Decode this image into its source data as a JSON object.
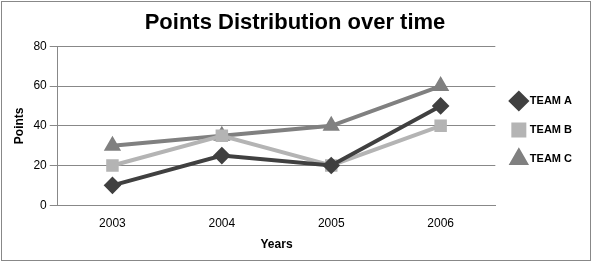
{
  "chart_data": {
    "type": "line",
    "title": "Points Distribution over time",
    "x_label": "Years",
    "y_label": "Points",
    "categories": [
      "2003",
      "2004",
      "2005",
      "2006"
    ],
    "series": [
      {
        "name": "TEAM A",
        "color": "#404040",
        "marker": "diamond",
        "values": [
          10,
          25,
          20,
          50
        ]
      },
      {
        "name": "TEAM B",
        "color": "#b4b4b4",
        "marker": "square",
        "values": [
          20,
          35,
          20,
          40
        ]
      },
      {
        "name": "TEAM C",
        "color": "#808080",
        "marker": "triangle",
        "values": [
          30,
          35,
          40,
          60
        ]
      }
    ],
    "ylim": [
      0,
      80
    ],
    "yticks": [
      0,
      20,
      40,
      60,
      80
    ],
    "grid": true,
    "legend": "right"
  }
}
